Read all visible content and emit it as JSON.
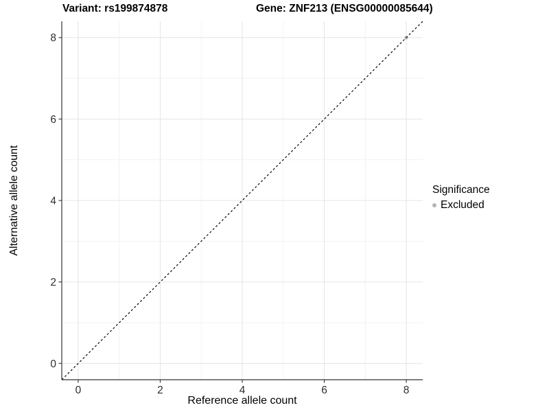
{
  "colors": {
    "background": "#ffffff",
    "grid_major": "#e4e4e4",
    "grid_minor": "#f2f2f2",
    "axis_line": "#333333",
    "tick_label": "#2e2e2e",
    "title": "#000000",
    "reference_line": "#000000",
    "point_excluded": "#b3b3b3"
  },
  "chart_data": {
    "type": "scatter",
    "title_left": "Variant: rs199874878",
    "title_right": "Gene: ZNF213 (ENSG00000085644)",
    "xlabel": "Reference allele count",
    "ylabel": "Alternative allele count",
    "xlim": [
      -0.4,
      8.4
    ],
    "ylim": [
      -0.4,
      8.4
    ],
    "x_ticks": [
      0,
      2,
      4,
      6,
      8
    ],
    "y_ticks": [
      0,
      2,
      4,
      6,
      8
    ],
    "x_minor": [
      1,
      3,
      5,
      7
    ],
    "y_minor": [
      1,
      3,
      5,
      7
    ],
    "grid": true,
    "reference_line": {
      "type": "identity y=x",
      "style": "dashed",
      "from": -0.4,
      "to": 8.4
    },
    "series": [
      {
        "name": "Excluded",
        "color": "#b3b3b3",
        "points": [
          {
            "x": 8,
            "y": 8
          }
        ]
      }
    ],
    "legend": {
      "position": "right",
      "title": "Significance",
      "items": [
        {
          "label": "Excluded",
          "color": "#b3b3b3"
        }
      ]
    }
  }
}
